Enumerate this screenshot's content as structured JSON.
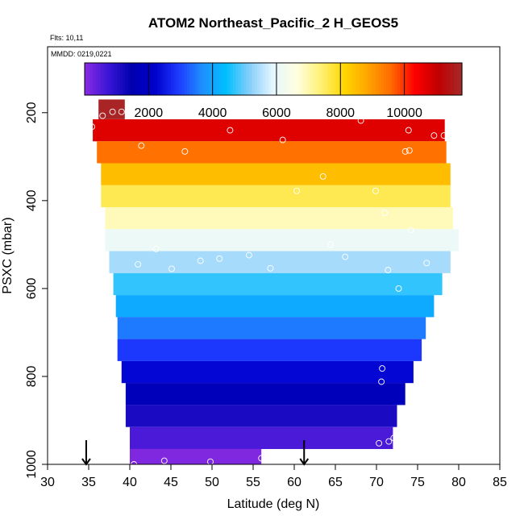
{
  "chart_data": {
    "type": "heatmap",
    "title": "ATOM2 Northeast_Pacific_2 H_GEOS5",
    "flights_label": "Flts: 10,11",
    "dates_label": "MMDD: 0219,0221",
    "xlabel": "Latitude (deg N)",
    "ylabel": "PSXC (mbar)",
    "xlim": [
      30,
      85
    ],
    "ylim": [
      1000,
      50
    ],
    "x_ticks": [
      "30",
      "35",
      "40",
      "45",
      "50",
      "55",
      "60",
      "65",
      "70",
      "75",
      "80",
      "85"
    ],
    "y_ticks": [
      "200",
      "400",
      "600",
      "800",
      "1000"
    ],
    "colorbar": {
      "min": 0,
      "max": 11800,
      "ticks": [
        "2000",
        "4000",
        "6000",
        "8000",
        "10000"
      ],
      "colors": [
        "#8a2be2",
        "#3b16d6",
        "#0000b0",
        "#0000cd",
        "#1e3cff",
        "#1e90ff",
        "#00bfff",
        "#87cefa",
        "#e6f7ff",
        "#ffffe0",
        "#fff176",
        "#ffd700",
        "#ffa500",
        "#ff6a00",
        "#ff0000",
        "#c00000",
        "#a52a2a"
      ]
    },
    "bands": [
      {
        "p_top": 170,
        "p_bot": 215,
        "lat_min": 36.2,
        "lat_max": 39.4,
        "value": 11700
      },
      {
        "p_top": 215,
        "p_bot": 265,
        "lat_min": 35.5,
        "lat_max": 78.3,
        "value": 10700
      },
      {
        "p_top": 265,
        "p_bot": 315,
        "lat_min": 36.0,
        "lat_max": 78.5,
        "value": 9500
      },
      {
        "p_top": 315,
        "p_bot": 365,
        "lat_min": 36.5,
        "lat_max": 79.0,
        "value": 8500
      },
      {
        "p_top": 365,
        "p_bot": 415,
        "lat_min": 36.5,
        "lat_max": 79.0,
        "value": 7600
      },
      {
        "p_top": 415,
        "p_bot": 465,
        "lat_min": 37.0,
        "lat_max": 79.3,
        "value": 6900
      },
      {
        "p_top": 465,
        "p_bot": 515,
        "lat_min": 37.0,
        "lat_max": 80.0,
        "value": 6100
      },
      {
        "p_top": 515,
        "p_bot": 565,
        "lat_min": 37.5,
        "lat_max": 79.0,
        "value": 5400
      },
      {
        "p_top": 565,
        "p_bot": 615,
        "lat_min": 38.0,
        "lat_max": 78.0,
        "value": 4700
      },
      {
        "p_top": 615,
        "p_bot": 665,
        "lat_min": 38.3,
        "lat_max": 77.0,
        "value": 4100
      },
      {
        "p_top": 665,
        "p_bot": 715,
        "lat_min": 38.5,
        "lat_max": 76.0,
        "value": 3500
      },
      {
        "p_top": 715,
        "p_bot": 765,
        "lat_min": 38.5,
        "lat_max": 75.5,
        "value": 2900
      },
      {
        "p_top": 765,
        "p_bot": 815,
        "lat_min": 39.0,
        "lat_max": 74.5,
        "value": 2300
      },
      {
        "p_top": 815,
        "p_bot": 865,
        "lat_min": 39.5,
        "lat_max": 73.5,
        "value": 1750
      },
      {
        "p_top": 865,
        "p_bot": 915,
        "lat_min": 39.5,
        "lat_max": 72.5,
        "value": 1150
      },
      {
        "p_top": 915,
        "p_bot": 965,
        "lat_min": 40.0,
        "lat_max": 72.0,
        "value": 600
      },
      {
        "p_top": 965,
        "p_bot": 1000,
        "lat_min": 40.0,
        "lat_max": 56.0,
        "value": 100
      }
    ],
    "points": [
      {
        "lat": 35.4,
        "p": 232
      },
      {
        "lat": 36.7,
        "p": 207
      },
      {
        "lat": 37.9,
        "p": 198
      },
      {
        "lat": 39.0,
        "p": 198
      },
      {
        "lat": 41.4,
        "p": 275
      },
      {
        "lat": 46.7,
        "p": 288
      },
      {
        "lat": 52.2,
        "p": 240
      },
      {
        "lat": 58.6,
        "p": 262
      },
      {
        "lat": 63.5,
        "p": 345
      },
      {
        "lat": 68.1,
        "p": 218
      },
      {
        "lat": 73.5,
        "p": 288
      },
      {
        "lat": 73.9,
        "p": 240
      },
      {
        "lat": 74.0,
        "p": 286
      },
      {
        "lat": 77.0,
        "p": 252
      },
      {
        "lat": 78.2,
        "p": 252
      },
      {
        "lat": 60.3,
        "p": 378
      },
      {
        "lat": 69.9,
        "p": 378
      },
      {
        "lat": 71.0,
        "p": 428
      },
      {
        "lat": 74.2,
        "p": 467
      },
      {
        "lat": 43.2,
        "p": 510
      },
      {
        "lat": 41.0,
        "p": 545
      },
      {
        "lat": 45.1,
        "p": 555
      },
      {
        "lat": 48.6,
        "p": 537
      },
      {
        "lat": 50.9,
        "p": 532
      },
      {
        "lat": 54.5,
        "p": 524
      },
      {
        "lat": 57.1,
        "p": 554
      },
      {
        "lat": 64.4,
        "p": 500
      },
      {
        "lat": 66.2,
        "p": 528
      },
      {
        "lat": 71.4,
        "p": 558
      },
      {
        "lat": 72.7,
        "p": 600
      },
      {
        "lat": 76.1,
        "p": 542
      },
      {
        "lat": 70.7,
        "p": 782
      },
      {
        "lat": 70.6,
        "p": 812
      },
      {
        "lat": 70.3,
        "p": 952
      },
      {
        "lat": 71.5,
        "p": 948
      },
      {
        "lat": 72.1,
        "p": 940
      },
      {
        "lat": 40.5,
        "p": 1000
      },
      {
        "lat": 44.2,
        "p": 992
      },
      {
        "lat": 49.8,
        "p": 994
      },
      {
        "lat": 56.0,
        "p": 986
      }
    ],
    "arrows": [
      {
        "lat": 34.7,
        "p_start": 945,
        "p_end": 1000
      },
      {
        "lat": 61.2,
        "p_start": 945,
        "p_end": 1000
      }
    ]
  }
}
